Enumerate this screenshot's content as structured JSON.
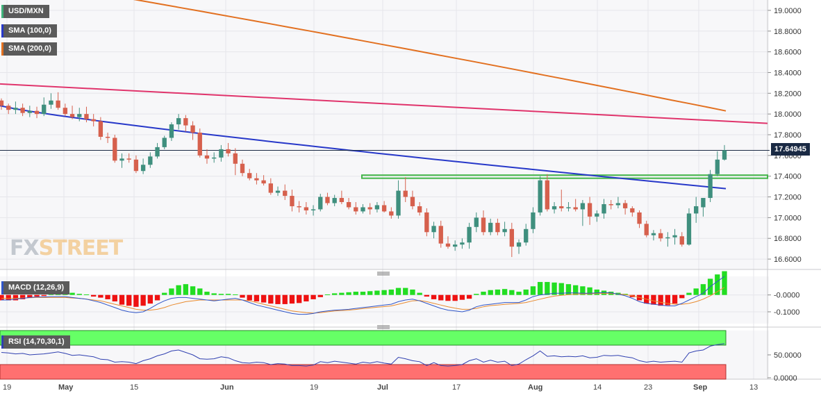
{
  "symbol_label": "USD/MXN",
  "last_price_label": "17.64945",
  "watermark": {
    "part1": "FX",
    "part2": "STREET"
  },
  "colors": {
    "up": "#3f8f7e",
    "down": "#d6604d",
    "sma50": "#e0336b",
    "sma100": "#2738c9",
    "sma200": "#e27020",
    "support_zone": "#43b649",
    "macd_line": "#2f55c8",
    "signal_line": "#e88a2e",
    "hist_pos": "#22dd22",
    "hist_neg": "#ee1111",
    "rsi_line": "#2f3fb0",
    "overbought": "#66ff66",
    "oversold": "#ff7070"
  },
  "chart_data": [
    {
      "type": "candlestick",
      "title": "USD/MXN",
      "x_ticks": [
        "19",
        "May",
        "15",
        "Jun",
        "19",
        "Jul",
        "17",
        "Aug",
        "14",
        "23",
        "Sep",
        "13"
      ],
      "y_ticks": [
        "19.0000",
        "18.8000",
        "18.6000",
        "18.4000",
        "18.2000",
        "18.0000",
        "17.8000",
        "17.6000",
        "17.4000",
        "17.2000",
        "17.0000",
        "16.8000",
        "16.6000"
      ],
      "ylim": [
        16.5,
        19.1
      ],
      "last_price": 17.64945,
      "ohlc": [
        [
          18.13,
          18.15,
          18.04,
          18.08
        ],
        [
          18.08,
          18.1,
          18.0,
          18.04
        ],
        [
          18.04,
          18.12,
          18.0,
          18.06
        ],
        [
          18.06,
          18.1,
          17.98,
          18.01
        ],
        [
          18.01,
          18.08,
          17.97,
          18.03
        ],
        [
          18.03,
          18.07,
          17.96,
          18.0
        ],
        [
          18.0,
          18.16,
          17.98,
          18.09
        ],
        [
          18.09,
          18.2,
          18.05,
          18.13
        ],
        [
          18.13,
          18.21,
          18.04,
          18.06
        ],
        [
          18.06,
          18.1,
          17.98,
          18.0
        ],
        [
          18.0,
          18.08,
          17.95,
          17.97
        ],
        [
          17.97,
          18.06,
          17.93,
          18.0
        ],
        [
          18.0,
          18.07,
          17.92,
          17.95
        ],
        [
          17.95,
          18.0,
          17.88,
          17.93
        ],
        [
          17.93,
          17.97,
          17.75,
          17.78
        ],
        [
          17.78,
          17.82,
          17.72,
          17.77
        ],
        [
          17.77,
          17.8,
          17.53,
          17.55
        ],
        [
          17.55,
          17.62,
          17.48,
          17.57
        ],
        [
          17.57,
          17.62,
          17.53,
          17.56
        ],
        [
          17.56,
          17.6,
          17.43,
          17.45
        ],
        [
          17.45,
          17.57,
          17.42,
          17.51
        ],
        [
          17.51,
          17.63,
          17.48,
          17.59
        ],
        [
          17.59,
          17.72,
          17.57,
          17.68
        ],
        [
          17.68,
          17.79,
          17.66,
          17.77
        ],
        [
          17.77,
          17.92,
          17.74,
          17.9
        ],
        [
          17.9,
          18.0,
          17.85,
          17.96
        ],
        [
          17.96,
          17.99,
          17.83,
          17.89
        ],
        [
          17.89,
          17.93,
          17.75,
          17.82
        ],
        [
          17.82,
          17.86,
          17.58,
          17.6
        ],
        [
          17.6,
          17.66,
          17.52,
          17.57
        ],
        [
          17.57,
          17.63,
          17.53,
          17.58
        ],
        [
          17.58,
          17.7,
          17.54,
          17.66
        ],
        [
          17.66,
          17.72,
          17.59,
          17.62
        ],
        [
          17.62,
          17.67,
          17.41,
          17.52
        ],
        [
          17.52,
          17.56,
          17.4,
          17.43
        ],
        [
          17.43,
          17.47,
          17.36,
          17.38
        ],
        [
          17.38,
          17.43,
          17.32,
          17.36
        ],
        [
          17.36,
          17.41,
          17.31,
          17.33
        ],
        [
          17.33,
          17.38,
          17.22,
          17.24
        ],
        [
          17.24,
          17.3,
          17.21,
          17.26
        ],
        [
          17.26,
          17.32,
          17.17,
          17.21
        ],
        [
          17.21,
          17.27,
          17.06,
          17.11
        ],
        [
          17.11,
          17.16,
          17.05,
          17.1
        ],
        [
          17.1,
          17.15,
          17.03,
          17.07
        ],
        [
          17.07,
          17.12,
          17.02,
          17.08
        ],
        [
          17.08,
          17.23,
          17.06,
          17.2
        ],
        [
          17.2,
          17.24,
          17.12,
          17.14
        ],
        [
          17.14,
          17.22,
          17.11,
          17.19
        ],
        [
          17.19,
          17.26,
          17.13,
          17.15
        ],
        [
          17.15,
          17.19,
          17.08,
          17.1
        ],
        [
          17.1,
          17.15,
          17.03,
          17.06
        ],
        [
          17.06,
          17.13,
          17.04,
          17.1
        ],
        [
          17.1,
          17.14,
          17.03,
          17.08
        ],
        [
          17.08,
          17.15,
          17.05,
          17.12
        ],
        [
          17.12,
          17.16,
          17.05,
          17.06
        ],
        [
          17.06,
          17.1,
          16.99,
          17.02
        ],
        [
          17.02,
          17.36,
          16.99,
          17.26
        ],
        [
          17.26,
          17.39,
          17.15,
          17.2
        ],
        [
          17.2,
          17.26,
          17.08,
          17.11
        ],
        [
          17.11,
          17.15,
          17.02,
          17.05
        ],
        [
          17.05,
          17.09,
          16.82,
          16.86
        ],
        [
          16.86,
          16.96,
          16.8,
          16.92
        ],
        [
          16.92,
          16.97,
          16.71,
          16.75
        ],
        [
          16.75,
          16.82,
          16.7,
          16.72
        ],
        [
          16.72,
          16.78,
          16.68,
          16.74
        ],
        [
          16.74,
          16.8,
          16.7,
          16.76
        ],
        [
          16.76,
          16.95,
          16.7,
          16.91
        ],
        [
          16.91,
          17.05,
          16.86,
          17.0
        ],
        [
          17.0,
          17.07,
          16.83,
          16.86
        ],
        [
          16.86,
          16.99,
          16.83,
          16.95
        ],
        [
          16.95,
          16.99,
          16.83,
          16.86
        ],
        [
          16.86,
          16.96,
          16.82,
          16.89
        ],
        [
          16.89,
          16.95,
          16.62,
          16.72
        ],
        [
          16.72,
          16.79,
          16.65,
          16.76
        ],
        [
          16.76,
          16.94,
          16.73,
          16.89
        ],
        [
          16.89,
          17.1,
          16.85,
          17.05
        ],
        [
          17.05,
          17.4,
          17.02,
          17.36
        ],
        [
          17.36,
          17.42,
          17.06,
          17.08
        ],
        [
          17.08,
          17.15,
          17.04,
          17.11
        ],
        [
          17.11,
          17.27,
          17.06,
          17.09
        ],
        [
          17.09,
          17.15,
          17.06,
          17.1
        ],
        [
          17.1,
          17.18,
          17.06,
          17.08
        ],
        [
          17.08,
          17.17,
          16.92,
          17.14
        ],
        [
          17.14,
          17.2,
          16.93,
          17.01
        ],
        [
          17.01,
          17.07,
          16.96,
          17.04
        ],
        [
          17.04,
          17.18,
          16.99,
          17.13
        ],
        [
          17.13,
          17.17,
          17.08,
          17.12
        ],
        [
          17.12,
          17.2,
          17.09,
          17.14
        ],
        [
          17.14,
          17.17,
          17.03,
          17.09
        ],
        [
          17.09,
          17.11,
          17.01,
          17.05
        ],
        [
          17.05,
          17.07,
          16.9,
          16.94
        ],
        [
          16.94,
          16.97,
          16.81,
          16.83
        ],
        [
          16.83,
          16.88,
          16.78,
          16.85
        ],
        [
          16.85,
          16.89,
          16.77,
          16.8
        ],
        [
          16.8,
          16.86,
          16.72,
          16.81
        ],
        [
          16.81,
          16.89,
          16.74,
          16.83
        ],
        [
          16.82,
          16.86,
          16.72,
          16.74
        ],
        [
          16.74,
          17.09,
          16.73,
          17.04
        ],
        [
          17.04,
          17.2,
          16.95,
          17.11
        ],
        [
          17.1,
          17.18,
          17.01,
          17.19
        ],
        [
          17.19,
          17.46,
          17.15,
          17.42
        ],
        [
          17.42,
          17.64,
          17.4,
          17.56
        ],
        [
          17.56,
          17.7,
          17.55,
          17.65
        ]
      ],
      "sma_100": {
        "name": "SMA (100,0)",
        "start": 18.08,
        "end": 17.28
      },
      "sma_200": {
        "name": "SMA (200,0)",
        "start": 19.33,
        "end": 18.03
      },
      "sma_50": {
        "start": 18.29,
        "end": 17.91
      },
      "support_zone": [
        17.38,
        17.41
      ]
    },
    {
      "type": "macd",
      "title": "MACD (12,26,9)",
      "y_ticks": [
        "-0.0000",
        "-0.1000"
      ],
      "histogram": [
        -0.01,
        -0.01,
        -0.01,
        -0.008,
        -0.005,
        -0.003,
        -0.002,
        0.002,
        0.004,
        0.006,
        0.004,
        0.002,
        0.001,
        -0.003,
        -0.005,
        -0.008,
        -0.012,
        -0.018,
        -0.02,
        -0.022,
        -0.02,
        -0.016,
        -0.01,
        0.004,
        0.012,
        0.018,
        0.02,
        0.016,
        0.012,
        0.006,
        0.003,
        0.002,
        0.002,
        0.001,
        -0.005,
        -0.01,
        -0.012,
        -0.014,
        -0.016,
        -0.017,
        -0.017,
        -0.016,
        -0.015,
        -0.012,
        -0.008,
        -0.004,
        0.001,
        0.003,
        0.004,
        0.005,
        0.006,
        0.006,
        0.007,
        0.008,
        0.009,
        0.01,
        0.013,
        0.013,
        0.01,
        0.004,
        -0.003,
        -0.008,
        -0.01,
        -0.011,
        -0.011,
        -0.009,
        -0.007,
        0.002,
        0.006,
        0.009,
        0.01,
        0.011,
        0.009,
        0.006,
        0.01,
        0.016,
        0.024,
        0.024,
        0.023,
        0.022,
        0.02,
        0.018,
        0.016,
        0.014,
        0.01,
        0.008,
        0.006,
        0.004,
        0.002,
        -0.004,
        -0.01,
        -0.016,
        -0.018,
        -0.02,
        -0.019,
        -0.016,
        -0.006,
        0.004,
        0.012,
        0.02,
        0.03,
        0.038,
        0.044
      ],
      "macd": [
        -0.03,
        -0.03,
        -0.025,
        -0.02,
        -0.015,
        -0.012,
        -0.012,
        -0.01,
        -0.01,
        -0.01,
        -0.015,
        -0.02,
        -0.025,
        -0.035,
        -0.045,
        -0.06,
        -0.075,
        -0.09,
        -0.1,
        -0.105,
        -0.1,
        -0.08,
        -0.055,
        -0.035,
        -0.02,
        -0.015,
        -0.015,
        -0.02,
        -0.025,
        -0.03,
        -0.035,
        -0.03,
        -0.025,
        -0.02,
        -0.03,
        -0.045,
        -0.06,
        -0.07,
        -0.08,
        -0.09,
        -0.1,
        -0.11,
        -0.115,
        -0.115,
        -0.11,
        -0.1,
        -0.095,
        -0.09,
        -0.088,
        -0.085,
        -0.08,
        -0.075,
        -0.07,
        -0.065,
        -0.06,
        -0.055,
        -0.04,
        -0.03,
        -0.025,
        -0.035,
        -0.05,
        -0.065,
        -0.08,
        -0.09,
        -0.095,
        -0.1,
        -0.09,
        -0.07,
        -0.06,
        -0.055,
        -0.05,
        -0.045,
        -0.045,
        -0.045,
        -0.03,
        -0.01,
        0.0,
        0.005,
        0.01,
        0.01,
        0.012,
        0.012,
        0.01,
        0.01,
        0.012,
        0.015,
        0.012,
        0.005,
        -0.005,
        -0.02,
        -0.04,
        -0.05,
        -0.055,
        -0.06,
        -0.065,
        -0.065,
        -0.05,
        -0.03,
        -0.01,
        0.01,
        0.05,
        0.08,
        0.11
      ],
      "signal": [
        -0.02,
        -0.02,
        -0.02,
        -0.018,
        -0.017,
        -0.015,
        -0.015,
        -0.015,
        -0.015,
        -0.015,
        -0.018,
        -0.02,
        -0.025,
        -0.03,
        -0.035,
        -0.045,
        -0.055,
        -0.065,
        -0.075,
        -0.085,
        -0.09,
        -0.09,
        -0.085,
        -0.075,
        -0.06,
        -0.05,
        -0.04,
        -0.035,
        -0.03,
        -0.03,
        -0.03,
        -0.03,
        -0.03,
        -0.03,
        -0.03,
        -0.035,
        -0.045,
        -0.055,
        -0.065,
        -0.075,
        -0.085,
        -0.095,
        -0.1,
        -0.105,
        -0.108,
        -0.105,
        -0.1,
        -0.095,
        -0.092,
        -0.09,
        -0.086,
        -0.081,
        -0.077,
        -0.073,
        -0.069,
        -0.065,
        -0.055,
        -0.045,
        -0.035,
        -0.033,
        -0.04,
        -0.05,
        -0.06,
        -0.07,
        -0.078,
        -0.085,
        -0.085,
        -0.08,
        -0.07,
        -0.063,
        -0.06,
        -0.056,
        -0.053,
        -0.05,
        -0.045,
        -0.035,
        -0.025,
        -0.015,
        -0.007,
        -0.002,
        0.002,
        0.005,
        0.006,
        0.007,
        0.008,
        0.009,
        0.008,
        0.006,
        0.002,
        -0.005,
        -0.015,
        -0.025,
        -0.035,
        -0.043,
        -0.05,
        -0.055,
        -0.055,
        -0.05,
        -0.04,
        -0.025,
        -0.005,
        0.02,
        0.045
      ],
      "ylim": [
        -0.17,
        0.11
      ]
    },
    {
      "type": "rsi",
      "title": "RSI (14,70,30,1)",
      "y_ticks": [
        "50.0000",
        "0.0000"
      ],
      "ylim": [
        0,
        100
      ],
      "overbought": 70,
      "oversold": 30,
      "rsi": [
        55,
        54,
        52,
        53,
        50,
        51,
        52,
        54,
        56,
        53,
        49,
        50,
        48,
        46,
        41,
        40,
        35,
        36,
        35,
        32,
        38,
        42,
        48,
        52,
        58,
        60,
        55,
        50,
        42,
        41,
        42,
        46,
        44,
        38,
        34,
        33,
        35,
        34,
        30,
        32,
        31,
        28,
        28,
        27,
        29,
        36,
        34,
        37,
        35,
        33,
        31,
        35,
        33,
        36,
        33,
        31,
        45,
        42,
        38,
        36,
        28,
        34,
        28,
        27,
        28,
        30,
        38,
        42,
        35,
        39,
        35,
        37,
        28,
        31,
        40,
        48,
        58,
        47,
        48,
        46,
        47,
        46,
        48,
        44,
        45,
        49,
        48,
        49,
        46,
        44,
        38,
        35,
        37,
        35,
        36,
        37,
        35,
        54,
        58,
        60,
        68,
        71,
        73
      ]
    }
  ]
}
